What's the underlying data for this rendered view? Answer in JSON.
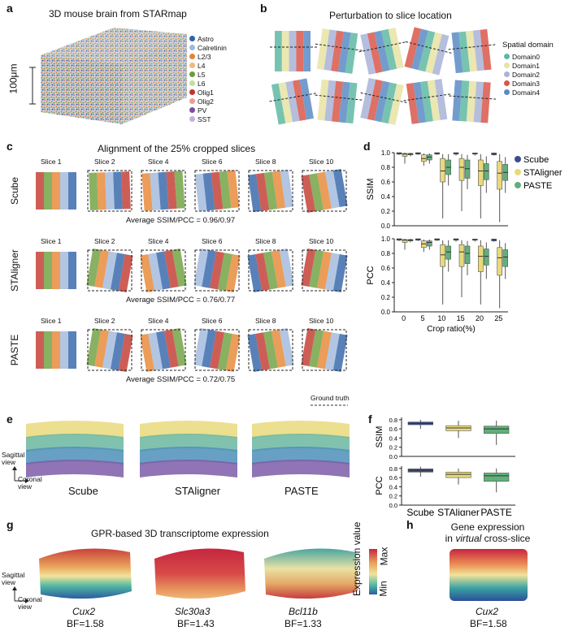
{
  "panels": {
    "a": {
      "label": "a",
      "title": "3D mouse brain from STARmap",
      "scale": "100μm",
      "legend": [
        {
          "name": "Astro",
          "color": "#2f62a7"
        },
        {
          "name": "Calretinin",
          "color": "#9fb8dc"
        },
        {
          "name": "L2/3",
          "color": "#e6842f"
        },
        {
          "name": "L4",
          "color": "#f2b97c"
        },
        {
          "name": "L5",
          "color": "#6a9e3b"
        },
        {
          "name": "L6",
          "color": "#bfe09e"
        },
        {
          "name": "Olig1",
          "color": "#c0362c"
        },
        {
          "name": "Olig2",
          "color": "#ef9a9a"
        },
        {
          "name": "PV",
          "color": "#7d4ea3"
        },
        {
          "name": "SST",
          "color": "#c7aed8"
        }
      ]
    },
    "b": {
      "label": "b",
      "title": "Perturbation to slice location",
      "legend_title": "Spatial domain",
      "legend": [
        {
          "name": "Domain0",
          "color": "#5fb8a5"
        },
        {
          "name": "Domain1",
          "color": "#e8e3a3"
        },
        {
          "name": "Domain2",
          "color": "#a9b3d8"
        },
        {
          "name": "Domain3",
          "color": "#d9574a"
        },
        {
          "name": "Domain4",
          "color": "#5b8bc6"
        }
      ]
    },
    "c": {
      "label": "c",
      "title": "Alignment of the 25% cropped slices",
      "slices": [
        "Slice 1",
        "Slice 2",
        "Slice 4",
        "Slice 6",
        "Slice 8",
        "Slice 10"
      ],
      "rows": [
        {
          "method": "Scube",
          "avg": "Average SSIM/PCC = 0.96/0.97"
        },
        {
          "method": "STAligner",
          "avg": "Average SSIM/PCC = 0.76/0.77"
        },
        {
          "method": "PASTE",
          "avg": "Average SSIM/PCC = 0.72/0.75"
        }
      ],
      "ground_truth": "Ground truth"
    },
    "d": {
      "label": "d"
    },
    "e": {
      "label": "e",
      "view_sagittal": "Sagittal view",
      "view_coronal": "Coronal view",
      "methods": [
        "Scube",
        "STAligner",
        "PASTE"
      ]
    },
    "f": {
      "label": "f"
    },
    "g": {
      "label": "g",
      "title": "GPR-based 3D transcriptome expression",
      "view_sagittal": "Sagittal view",
      "view_coronal": "Coronal view",
      "genes": [
        {
          "name": "Cux2",
          "bf": "BF=1.58"
        },
        {
          "name": "Slc30a3",
          "bf": "BF=1.43"
        },
        {
          "name": "Bcl11b",
          "bf": "BF=1.33"
        }
      ],
      "colorbar_label": "Expression value",
      "max": "Max",
      "min": "Min"
    },
    "h": {
      "label": "h",
      "title_line1": "Gene expression",
      "title_line2_pre": "in ",
      "title_line2_it": "virtual",
      "title_line2_post": " cross-slice",
      "gene": "Cux2",
      "bf": "BF=1.58"
    }
  },
  "chart_data": [
    {
      "type": "box",
      "id": "d-ssim",
      "ylabel": "SSIM",
      "ylim": [
        0,
        1
      ],
      "yticks": [
        0,
        0.2,
        0.4,
        0.6,
        0.8,
        1.0
      ],
      "categories": [
        "0",
        "5",
        "10",
        "15",
        "20",
        "25"
      ],
      "xlabel": "Crop ratio(%)",
      "series": [
        {
          "name": "Scube",
          "color": "#3a4e8c",
          "boxes": [
            [
              0.97,
              0.98,
              0.99,
              1.0,
              1.0
            ],
            [
              0.97,
              0.98,
              0.99,
              1.0,
              1.0
            ],
            [
              0.97,
              0.98,
              0.99,
              1.0,
              1.0
            ],
            [
              0.96,
              0.98,
              0.99,
              1.0,
              1.0
            ],
            [
              0.96,
              0.98,
              0.99,
              0.995,
              1.0
            ],
            [
              0.96,
              0.97,
              0.99,
              0.995,
              1.0
            ]
          ]
        },
        {
          "name": "STAligner",
          "color": "#e8da7a",
          "boxes": [
            [
              0.85,
              0.95,
              0.98,
              0.99,
              1.0
            ],
            [
              0.82,
              0.88,
              0.92,
              0.97,
              0.99
            ],
            [
              0.1,
              0.6,
              0.75,
              0.92,
              0.98
            ],
            [
              0.2,
              0.62,
              0.8,
              0.92,
              0.98
            ],
            [
              0.1,
              0.55,
              0.75,
              0.9,
              0.98
            ],
            [
              0.05,
              0.5,
              0.72,
              0.88,
              0.98
            ]
          ]
        },
        {
          "name": "PASTE",
          "color": "#5fb07a",
          "boxes": [
            [
              0.95,
              0.97,
              0.98,
              0.99,
              1.0
            ],
            [
              0.85,
              0.9,
              0.94,
              0.97,
              0.99
            ],
            [
              0.55,
              0.7,
              0.8,
              0.9,
              0.98
            ],
            [
              0.5,
              0.65,
              0.78,
              0.9,
              0.97
            ],
            [
              0.45,
              0.63,
              0.75,
              0.85,
              0.95
            ],
            [
              0.45,
              0.62,
              0.73,
              0.84,
              0.94
            ]
          ]
        }
      ]
    },
    {
      "type": "box",
      "id": "d-pcc",
      "ylabel": "PCC",
      "ylim": [
        0,
        1
      ],
      "yticks": [
        0,
        0.2,
        0.4,
        0.6,
        0.8,
        1.0
      ],
      "categories": [
        "0",
        "5",
        "10",
        "15",
        "20",
        "25"
      ],
      "xlabel": "Crop ratio(%)",
      "series": [
        {
          "name": "Scube",
          "color": "#3a4e8c",
          "boxes": [
            [
              0.97,
              0.98,
              0.99,
              1.0,
              1.0
            ],
            [
              0.97,
              0.98,
              0.99,
              1.0,
              1.0
            ],
            [
              0.97,
              0.98,
              0.99,
              1.0,
              1.0
            ],
            [
              0.96,
              0.98,
              0.99,
              1.0,
              1.0
            ],
            [
              0.96,
              0.98,
              0.99,
              0.995,
              1.0
            ],
            [
              0.96,
              0.97,
              0.99,
              0.995,
              1.0
            ]
          ]
        },
        {
          "name": "STAligner",
          "color": "#e8da7a",
          "boxes": [
            [
              0.85,
              0.95,
              0.98,
              0.99,
              1.0
            ],
            [
              0.82,
              0.88,
              0.93,
              0.97,
              0.99
            ],
            [
              0.1,
              0.62,
              0.78,
              0.92,
              0.98
            ],
            [
              0.2,
              0.62,
              0.82,
              0.92,
              0.98
            ],
            [
              0.1,
              0.55,
              0.76,
              0.9,
              0.98
            ],
            [
              0.05,
              0.5,
              0.74,
              0.88,
              0.98
            ]
          ]
        },
        {
          "name": "PASTE",
          "color": "#5fb07a",
          "boxes": [
            [
              0.95,
              0.97,
              0.98,
              0.99,
              1.0
            ],
            [
              0.85,
              0.9,
              0.95,
              0.97,
              0.99
            ],
            [
              0.55,
              0.72,
              0.82,
              0.9,
              0.98
            ],
            [
              0.5,
              0.66,
              0.8,
              0.9,
              0.97
            ],
            [
              0.45,
              0.64,
              0.76,
              0.86,
              0.95
            ],
            [
              0.45,
              0.62,
              0.75,
              0.85,
              0.94
            ]
          ]
        }
      ]
    },
    {
      "type": "box",
      "id": "f-ssim",
      "ylabel": "SSIM",
      "ylim": [
        0,
        0.85
      ],
      "yticks": [
        0,
        0.1,
        0.2,
        0.3,
        0.4,
        0.5,
        0.6,
        0.7,
        0.8
      ],
      "categories": [
        "Scube",
        "STAligner",
        "PASTE"
      ],
      "boxes": [
        {
          "color": "#3a4e8c",
          "stats": [
            0.6,
            0.69,
            0.72,
            0.75,
            0.8
          ]
        },
        {
          "color": "#e8da7a",
          "stats": [
            0.4,
            0.56,
            0.62,
            0.67,
            0.78
          ]
        },
        {
          "color": "#5fb07a",
          "stats": [
            0.25,
            0.5,
            0.6,
            0.66,
            0.78
          ]
        }
      ]
    },
    {
      "type": "box",
      "id": "f-pcc",
      "ylabel": "PCC",
      "ylim": [
        0,
        0.85
      ],
      "yticks": [
        0,
        0.1,
        0.2,
        0.3,
        0.4,
        0.5,
        0.6,
        0.7,
        0.8
      ],
      "categories": [
        "Scube",
        "STAligner",
        "PASTE"
      ],
      "boxes": [
        {
          "color": "#3a4e8c",
          "stats": [
            0.62,
            0.72,
            0.76,
            0.79,
            0.84
          ]
        },
        {
          "color": "#e8da7a",
          "stats": [
            0.45,
            0.6,
            0.67,
            0.72,
            0.8
          ]
        },
        {
          "color": "#5fb07a",
          "stats": [
            0.28,
            0.52,
            0.64,
            0.7,
            0.8
          ]
        }
      ]
    }
  ]
}
